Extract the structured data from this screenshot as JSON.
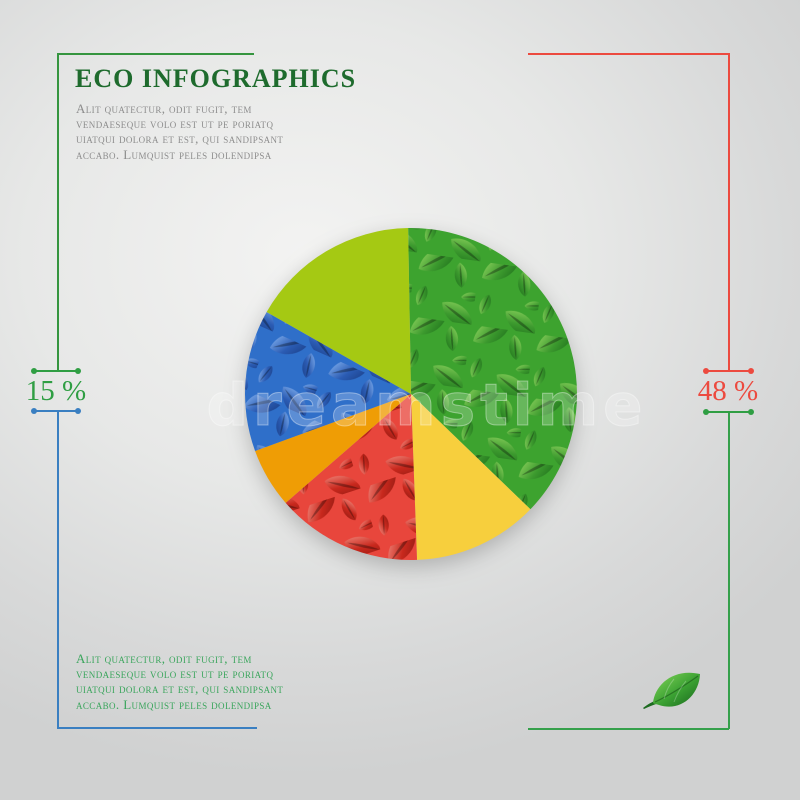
{
  "header": {
    "title": "ECO INFOGRAPHICS",
    "title_color": "#1e6b2d",
    "paragraph": "Alit quatectur, odit fugit, tem\nvendaeseque volo est ut pe poriatq\nuiatqui dolora et est, qui sandipsant\naccabo. Lumquist peles dolendipsa",
    "paragraph_color": "#8d8d8d"
  },
  "footer": {
    "paragraph": "Alit quatectur, odit fugit, tem\nvendaeseque volo est ut pe poriatq\nuiatqui dolora et est, qui sandipsant\naccabo. Lumquist peles dolendipsa",
    "paragraph_color": "#3aa55c"
  },
  "brackets": {
    "top_left_color": "#35953f",
    "top_right_color": "#ec4a3f",
    "bottom_left_color": "#3a7fc1",
    "bottom_right_color": "#35a04b"
  },
  "callouts": {
    "left": {
      "value_color": "#2f9e43",
      "upper_tick_color": "#2f9e43",
      "lower_tick_color": "#3a7fc1"
    },
    "right": {
      "value_color": "#ec4a3f",
      "upper_tick_color": "#ec4a3f",
      "lower_tick_color": "#2f9e43"
    }
  },
  "watermark": {
    "text": "dreamstime"
  },
  "leaf_badge": {
    "leaf_color_light": "#8ad95b",
    "leaf_color_dark": "#1d7a22"
  },
  "chart_data": {
    "type": "pie",
    "title": "ECO INFOGRAPHICS",
    "center": [
      411,
      394
    ],
    "radius": 166,
    "start_angle_deg": -1,
    "legend": "none",
    "segments": [
      {
        "name": "green-leaves",
        "percent": 37.5,
        "color": "#3da32f",
        "pattern": "green-leaves"
      },
      {
        "name": "yellow",
        "percent": 12.2,
        "color": "#f7cf3d"
      },
      {
        "name": "red-leaves",
        "percent": 14.2,
        "color": "#e8463c",
        "pattern": "red-leaves"
      },
      {
        "name": "orange",
        "percent": 5.8,
        "color": "#ef9d05"
      },
      {
        "name": "blue-leaves",
        "percent": 13.8,
        "color": "#2f6fc9",
        "pattern": "blue-leaves"
      },
      {
        "name": "lime",
        "percent": 16.5,
        "color": "#a5c913"
      }
    ],
    "labels": {
      "left": "15 %",
      "right": "48 %"
    }
  }
}
